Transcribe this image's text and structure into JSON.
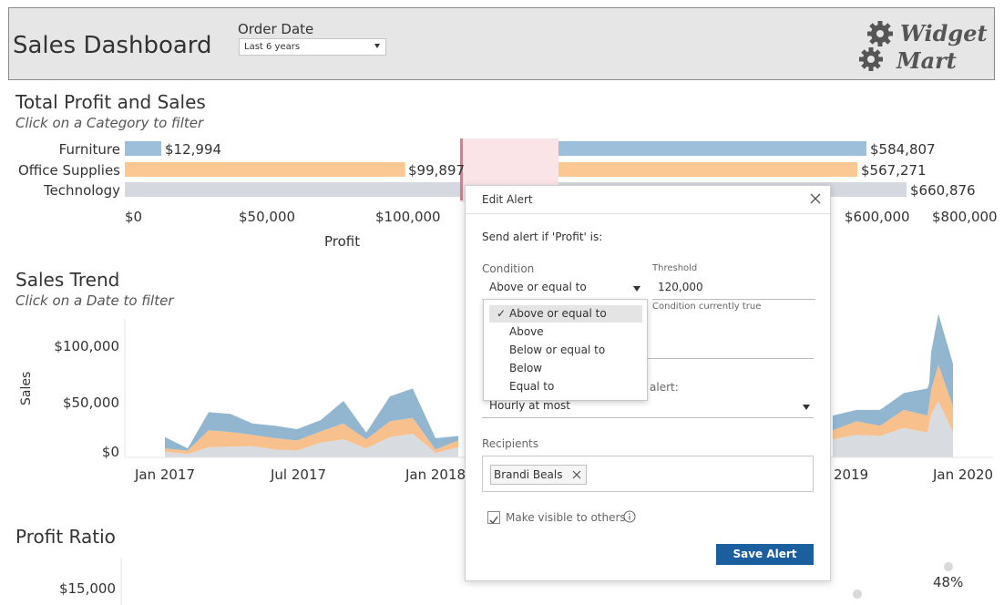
{
  "header": {
    "title": "Sales Dashboard",
    "filter_label": "Order Date",
    "filter_value": "Last 6 years",
    "logo_line1": "Widget",
    "logo_line2": "Mart"
  },
  "profit_sales": {
    "title": "Total Profit and Sales",
    "subtitle": "Click on a Category to filter",
    "x_axis_label": "Profit",
    "profit_ticks": [
      "$0",
      "$50,000",
      "$100,000"
    ],
    "sales_ticks": [
      "$600,000",
      "$800,000"
    ]
  },
  "sales_trend": {
    "title": "Sales Trend",
    "subtitle": "Click on a Date to filter",
    "y_axis_label": "Sales",
    "y_ticks": [
      "$100,000",
      "$50,000",
      "$0"
    ],
    "x_ticks": [
      "Jan 2017",
      "Jul 2017",
      "Jan 2018",
      "2019",
      "Jan 2020"
    ]
  },
  "profit_ratio": {
    "title": "Profit Ratio",
    "y_tick": "$15,000",
    "point_label": "48%"
  },
  "dialog": {
    "title": "Edit Alert",
    "send_alert_text": "Send alert if 'Profit' is:",
    "condition_label": "Condition",
    "condition_value": "Above or equal to",
    "threshold_label": "Threshold",
    "threshold_value": "120,000",
    "threshold_note": "Condition currently true",
    "frequency_label_fragment": "alert:",
    "frequency_value": "Hourly at most",
    "recipients_label": "Recipients",
    "recipient_name": "Brandi Beals",
    "visible_label": "Make visible to others",
    "save_label": "Save Alert"
  },
  "condition_options": [
    {
      "label": "Above or equal to",
      "selected": true
    },
    {
      "label": "Above",
      "selected": false
    },
    {
      "label": "Below or equal to",
      "selected": false
    },
    {
      "label": "Below",
      "selected": false
    },
    {
      "label": "Equal to",
      "selected": false
    }
  ],
  "colors": {
    "furniture": "#9dbfd9",
    "office_supplies": "#fbc793",
    "technology": "#d5d9df",
    "trend_blue": "#92b6d0",
    "trend_orange": "#f7c08d",
    "trend_gray": "#d8dce0",
    "save_button": "#1b5f9e"
  },
  "chart_data": [
    {
      "type": "bar",
      "categories": [
        "Furniture",
        "Office Supplies",
        "Technology"
      ],
      "series": [
        {
          "name": "Profit",
          "values": [
            12994,
            99897,
            null
          ]
        },
        {
          "name": "Sales",
          "values": [
            584807,
            567271,
            660876
          ]
        }
      ],
      "value_labels": {
        "profit": [
          "$12,994",
          "$99,897",
          ""
        ],
        "sales": [
          "$584,807",
          "$567,271",
          "$660,876"
        ]
      },
      "profit_xlim": [
        0,
        130000
      ],
      "sales_xlim": [
        0,
        800000
      ]
    },
    {
      "type": "area",
      "x": [
        "Jan 2017",
        "Feb 2017",
        "Mar 2017",
        "Apr 2017",
        "May 2017",
        "Jun 2017",
        "Jul 2017",
        "Aug 2017",
        "Sep 2017",
        "Oct 2017",
        "Nov 2017",
        "Dec 2017",
        "Jan 2018",
        "Feb 2018",
        "Mar 2018",
        "Apr 2018",
        "Jan 2019",
        "Feb 2019",
        "Mar 2019",
        "Apr 2019",
        "May 2019",
        "Jun 2019",
        "Jul 2019",
        "Aug 2019",
        "Sep 2019"
      ],
      "series": [
        {
          "name": "Technology",
          "values": [
            5000,
            3000,
            9000,
            9500,
            10000,
            7000,
            6000,
            13000,
            16000,
            8000,
            18000,
            21000,
            4000,
            9000,
            12000,
            14000,
            16000,
            20000,
            19000,
            26000,
            22000,
            30000,
            38000,
            50000,
            22000
          ]
        },
        {
          "name": "Office Supplies",
          "values": [
            3000,
            3000,
            15000,
            13000,
            10000,
            10000,
            9000,
            10000,
            14000,
            8000,
            14000,
            14000,
            3000,
            6000,
            11000,
            10000,
            8000,
            12000,
            9000,
            16000,
            15000,
            18000,
            22000,
            32000,
            23000
          ]
        },
        {
          "name": "Furniture",
          "values": [
            10000,
            2000,
            16000,
            16000,
            10000,
            11000,
            10000,
            10000,
            20000,
            6000,
            22000,
            26000,
            10000,
            4000,
            12000,
            12000,
            13000,
            10000,
            14000,
            15000,
            24000,
            18000,
            33000,
            45000,
            38000
          ]
        }
      ],
      "ylim": [
        0,
        125000
      ]
    }
  ]
}
